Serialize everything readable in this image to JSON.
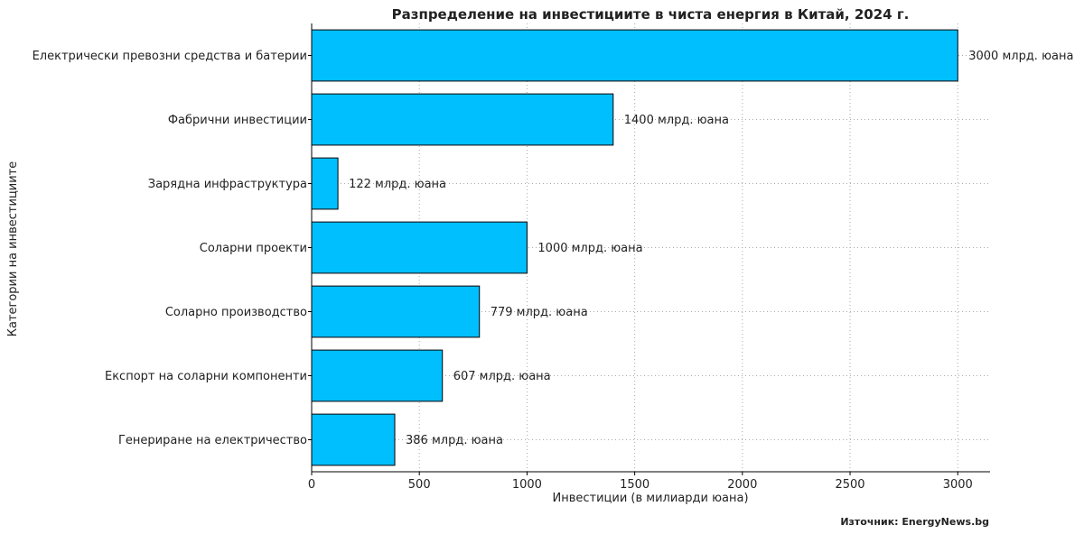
{
  "chart_data": {
    "type": "bar",
    "orientation": "horizontal",
    "title": "Разпределение на инвестициите в чиста енергия в Китай, 2024 г.",
    "xlabel": "Инвестиции (в милиарди юана)",
    "ylabel": "Категории на инвестициите",
    "categories": [
      "Електрически превозни средства и батерии",
      "Фабрични инвестиции",
      "Зарядна инфраструктура",
      "Соларни проекти",
      "Соларно производство",
      "Експорт на соларни компоненти",
      "Генериране на електричество"
    ],
    "values": [
      3000,
      1400,
      122,
      1000,
      779,
      607,
      386
    ],
    "data_labels": [
      "3000 млрд. юана",
      "1400 млрд. юана",
      "122 млрд. юана",
      "1000 млрд. юана",
      "779 млрд. юана",
      "607 млрд. юана",
      "386 млрд. юана"
    ],
    "xticks": [
      0,
      500,
      1000,
      1500,
      2000,
      2500,
      3000
    ],
    "xtick_labels": [
      "0",
      "500",
      "1000",
      "1500",
      "2000",
      "2500",
      "3000"
    ],
    "xlim": [
      0,
      3150
    ],
    "grid": true,
    "bar_color": "#00bfff",
    "edge_color": "#000000",
    "source": "Източник: EnergyNews.bg"
  }
}
